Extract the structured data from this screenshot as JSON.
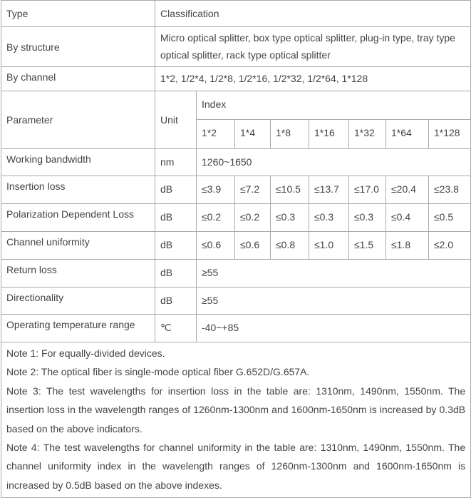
{
  "header": {
    "type": "Type",
    "classification": "Classification"
  },
  "by_structure": {
    "label": "By structure",
    "value": "Micro optical splitter, box type optical splitter, plug-in type, tray type optical splitter, rack type optical splitter"
  },
  "by_channel": {
    "label": "By channel",
    "value": "1*2, 1/2*4, 1/2*8, 1/2*16, 1/2*32, 1/2*64, 1*128"
  },
  "param_header": {
    "parameter": "Parameter",
    "unit": "Unit",
    "index": "Index",
    "channels": [
      "1*2",
      "1*4",
      "1*8",
      "1*16",
      "1*32",
      "1*64",
      "1*128"
    ]
  },
  "rows": [
    {
      "name": "Working bandwidth",
      "unit": "nm",
      "value": "1260~1650"
    },
    {
      "name": "Insertion loss",
      "unit": "dB",
      "values": [
        "≤3.9",
        "≤7.2",
        "≤10.5",
        "≤13.7",
        "≤17.0",
        "≤20.4",
        "≤23.8"
      ]
    },
    {
      "name": "Polarization Dependent Loss",
      "unit": "dB",
      "values": [
        "≤0.2",
        "≤0.2",
        "≤0.3",
        "≤0.3",
        "≤0.3",
        "≤0.4",
        "≤0.5"
      ]
    },
    {
      "name": "Channel uniformity",
      "unit": "dB",
      "values": [
        "≤0.6",
        "≤0.6",
        "≤0.8",
        "≤1.0",
        "≤1.5",
        "≤1.8",
        "≤2.0"
      ]
    },
    {
      "name": "Return loss",
      "unit": "dB",
      "value": "≥55"
    },
    {
      "name": "Directionality",
      "unit": "dB",
      "value": "≥55"
    },
    {
      "name": "Operating temperature range",
      "unit": "℃",
      "value": "-40~+85"
    }
  ],
  "notes": [
    "Note 1: For equally-divided devices.",
    "Note 2: The optical fiber is single-mode optical fiber G.652D/G.657A.",
    "Note 3: The test wavelengths for insertion loss in the table are: 1310nm, 1490nm, 1550nm. The insertion loss in the wavelength ranges of 1260nm-1300nm and 1600nm-1650nm is increased by 0.3dB based on the above indicators.",
    "Note 4: The test wavelengths for channel uniformity in the table are: 1310nm, 1490nm, 1550nm. The channel uniformity index in the wavelength ranges of 1260nm-1300nm and 1600nm-1650nm is increased by 0.5dB based on the above indexes."
  ]
}
